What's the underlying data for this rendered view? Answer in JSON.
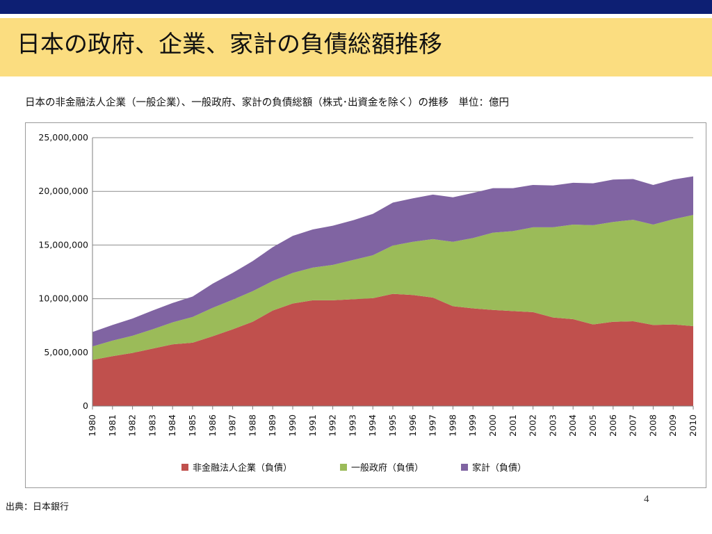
{
  "slide": {
    "title": "日本の政府、企業、家計の負債総額推移",
    "subtitle": "日本の非金融法人企業（一般企業）、一般政府、家計の負債総額（株式･出資金を除く）の推移　単位：億円",
    "source": "出典：日本銀行",
    "page_number": "4"
  },
  "colors": {
    "top_bar": "#0d1f73",
    "title_band": "#fbdd80"
  },
  "chart_data": {
    "type": "area",
    "stacked": true,
    "title": "",
    "xlabel": "",
    "ylabel": "",
    "ylim": [
      0,
      25000000
    ],
    "yticks": [
      0,
      5000000,
      10000000,
      15000000,
      20000000,
      25000000
    ],
    "ytick_labels": [
      "0",
      "5,000,000",
      "10,000,000",
      "15,000,000",
      "20,000,000",
      "25,000,000"
    ],
    "grid": true,
    "legend_position": "bottom",
    "categories": [
      "1980",
      "1981",
      "1982",
      "1983",
      "1984",
      "1985",
      "1986",
      "1987",
      "1988",
      "1989",
      "1990",
      "1991",
      "1992",
      "1993",
      "1994",
      "1995",
      "1996",
      "1997",
      "1998",
      "1999",
      "2000",
      "2001",
      "2002",
      "2003",
      "2004",
      "2005",
      "2006",
      "2007",
      "2008",
      "2009",
      "2010"
    ],
    "series": [
      {
        "name": "非金融法人企業（負債）",
        "color": "#c0504d",
        "values": [
          4300000,
          4650000,
          4950000,
          5350000,
          5750000,
          5900000,
          6500000,
          7150000,
          7850000,
          8900000,
          9550000,
          9850000,
          9850000,
          9950000,
          10050000,
          10450000,
          10350000,
          10100000,
          9300000,
          9100000,
          8950000,
          8850000,
          8750000,
          8250000,
          8100000,
          7600000,
          7850000,
          7900000,
          7550000,
          7600000,
          7450000
        ]
      },
      {
        "name": "一般政府（負債）",
        "color": "#9bbb59",
        "values": [
          1250000,
          1450000,
          1600000,
          1800000,
          2050000,
          2400000,
          2650000,
          2750000,
          2850000,
          2750000,
          2850000,
          3050000,
          3300000,
          3650000,
          4000000,
          4500000,
          4950000,
          5450000,
          6000000,
          6550000,
          7200000,
          7450000,
          7900000,
          8400000,
          8800000,
          9250000,
          9300000,
          9450000,
          9350000,
          9800000,
          10350000
        ]
      },
      {
        "name": "家計（負債）",
        "color": "#8064a2",
        "values": [
          1350000,
          1450000,
          1600000,
          1750000,
          1800000,
          1900000,
          2250000,
          2500000,
          2800000,
          3150000,
          3450000,
          3550000,
          3650000,
          3700000,
          3850000,
          4000000,
          4050000,
          4150000,
          4150000,
          4200000,
          4150000,
          4000000,
          3950000,
          3900000,
          3900000,
          3900000,
          3950000,
          3800000,
          3700000,
          3700000,
          3600000
        ]
      }
    ]
  }
}
